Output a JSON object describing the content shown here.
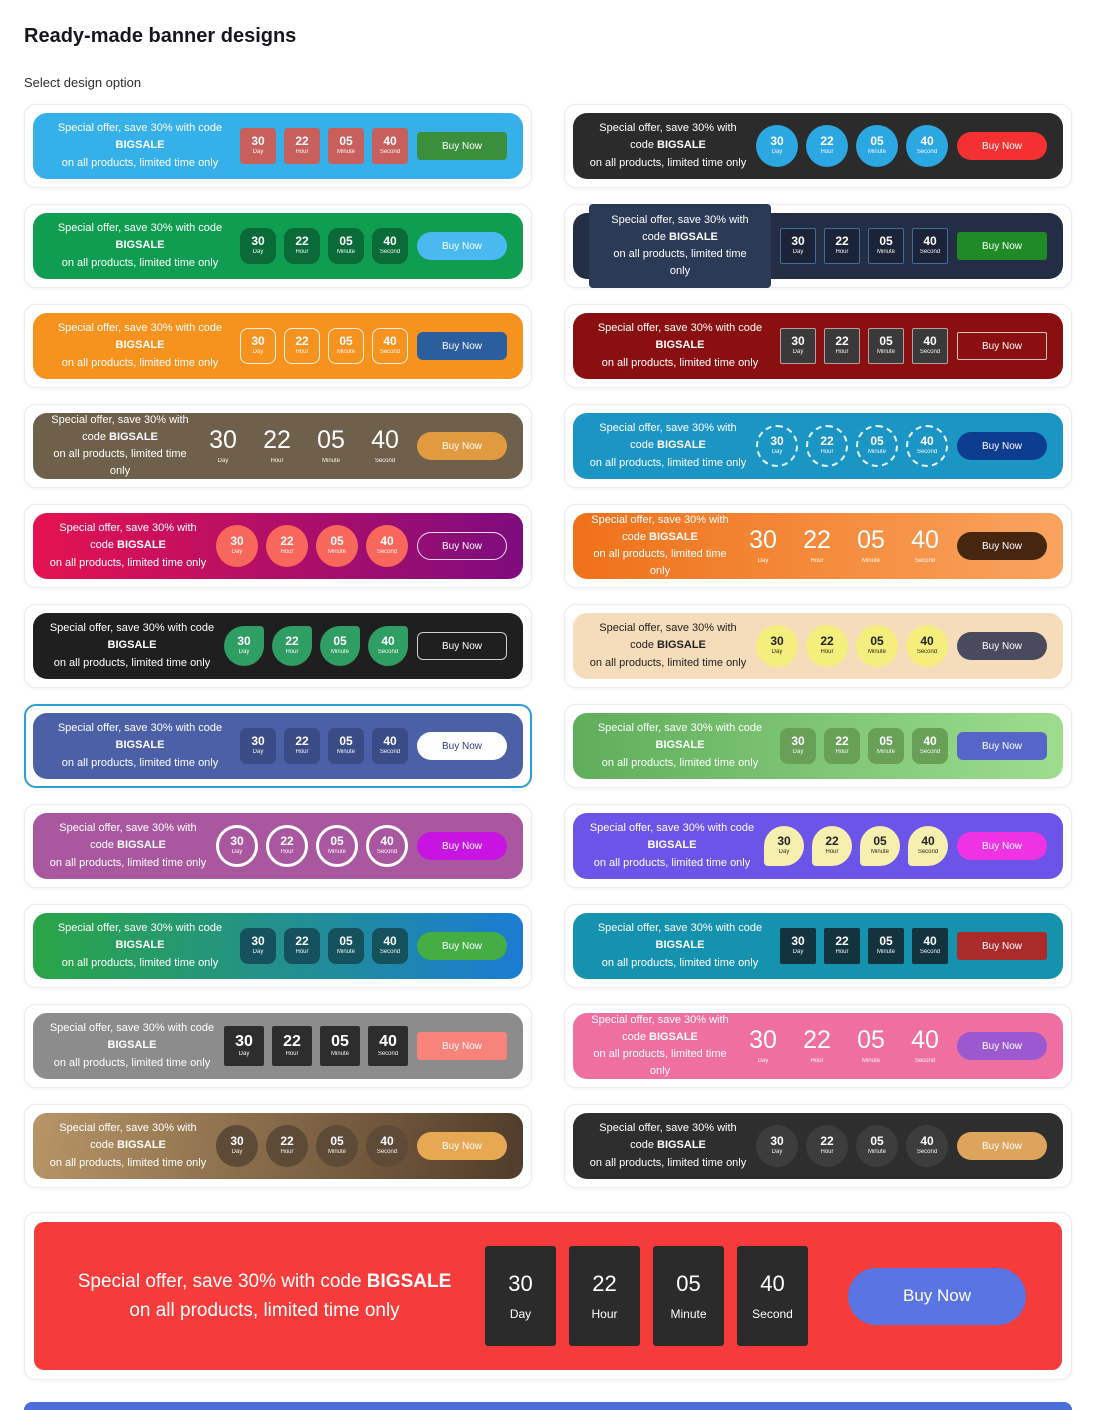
{
  "header": {
    "title": "Ready-made banner designs",
    "subtitle": "Select design option"
  },
  "banner_text": {
    "line1_prefix": "Special offer, save 30% with code ",
    "code": "BIGSALE",
    "line2": "on all products, limited time only"
  },
  "countdown": {
    "units": [
      {
        "value": "30",
        "label": "Day"
      },
      {
        "value": "22",
        "label": "Hour"
      },
      {
        "value": "05",
        "label": "Minute"
      },
      {
        "value": "40",
        "label": "Second"
      }
    ]
  },
  "buy_button_label": "Buy Now",
  "selected_border_color": "#2b9fd8",
  "designs": [
    {
      "name": "sky-blue-red-boxes",
      "selected": false,
      "bg": "#35b0e8",
      "text_color": "#ffffff",
      "timer": {
        "shape": "box",
        "bg": "#c75f5d",
        "color": "#ffffff",
        "radius": "4px"
      },
      "button": {
        "bg": "#3a8f3d",
        "color": "#ffffff",
        "radius": "4px"
      }
    },
    {
      "name": "charcoal-blue-circles",
      "selected": false,
      "bg": "#2b2b2b",
      "text_color": "#ffffff",
      "timer": {
        "shape": "circle",
        "bg": "#2ba7e2",
        "color": "#ffffff"
      },
      "button": {
        "bg": "#f43030",
        "color": "#ffffff",
        "radius": "999px"
      }
    },
    {
      "name": "green-dark-boxes",
      "selected": false,
      "bg": "#0f9d51",
      "text_color": "#ffffff",
      "timer": {
        "shape": "box",
        "bg": "#0a6b39",
        "color": "#ffffff",
        "radius": "10px"
      },
      "button": {
        "bg": "#49b9ef",
        "color": "#ffffff",
        "radius": "999px"
      }
    },
    {
      "name": "navy-outline-boxes",
      "selected": false,
      "bg": "#232e45",
      "text_color": "#ffffff",
      "text_panel": "#2b3a55",
      "timer": {
        "shape": "box",
        "bg": "#1a2436",
        "color": "#ffffff",
        "border": "1px solid #3f6d9e",
        "radius": "2px"
      },
      "button": {
        "bg": "#1f8b24",
        "color": "#ffffff",
        "radius": "3px"
      }
    },
    {
      "name": "orange-outline-boxes",
      "selected": false,
      "bg": "#f6921e",
      "text_color": "#ffffff",
      "timer": {
        "shape": "box",
        "bg": "transparent",
        "color": "#ffffff",
        "border": "1px solid rgba(255,255,255,0.85)",
        "radius": "8px"
      },
      "button": {
        "bg": "#2a5e9c",
        "color": "#ffffff",
        "radius": "6px"
      }
    },
    {
      "name": "maroon-gray-boxes",
      "selected": false,
      "bg": "#8a0f11",
      "text_color": "#ffffff",
      "timer": {
        "shape": "box",
        "bg": "#3a3a3a",
        "color": "#ffffff",
        "border": "1px solid #b99f9f",
        "radius": "2px"
      },
      "button": {
        "bg": "transparent",
        "color": "#ffffff",
        "border": "1px solid #d9c1c1",
        "radius": "2px"
      }
    },
    {
      "name": "taupe-plain-numbers",
      "selected": false,
      "bg": "#6e604a",
      "text_color": "#ffffff",
      "timer": {
        "shape": "plain",
        "color": "#ffffff"
      },
      "button": {
        "bg": "#e29a41",
        "color": "#ffffff",
        "radius": "999px"
      }
    },
    {
      "name": "teal-dashed-circles",
      "selected": false,
      "bg": "#1b95c4",
      "text_color": "#ffffff",
      "timer": {
        "shape": "circle",
        "bg": "transparent",
        "color": "#ffffff",
        "border": "2px dashed rgba(255,255,255,0.9)"
      },
      "button": {
        "bg": "#0d3d90",
        "color": "#ffffff",
        "radius": "999px"
      }
    },
    {
      "name": "crimson-purple-gradient",
      "selected": false,
      "bg": "linear-gradient(90deg,#e51250,#7d0c7e)",
      "text_color": "#ffffff",
      "timer": {
        "shape": "circle",
        "bg": "#f8675c",
        "color": "#ffffff"
      },
      "button": {
        "bg": "transparent",
        "color": "#ffffff",
        "border": "1px solid rgba(255,255,255,0.85)",
        "radius": "999px"
      }
    },
    {
      "name": "orange-gradient-plain",
      "selected": false,
      "bg": "linear-gradient(90deg,#ef7119,#f9a45f)",
      "text_color": "#ffffff",
      "timer": {
        "shape": "plain",
        "color": "#ffffff"
      },
      "button": {
        "bg": "#47260f",
        "color": "#ffffff",
        "radius": "999px"
      }
    },
    {
      "name": "black-green-leaf",
      "selected": false,
      "bg": "#1f1f1f",
      "text_color": "#ffffff",
      "timer": {
        "shape": "leaf-tr",
        "bg": "#2f9e63",
        "color": "#ffffff"
      },
      "button": {
        "bg": "transparent",
        "color": "#ffffff",
        "border": "1px solid #cfcfcf",
        "radius": "6px"
      }
    },
    {
      "name": "cream-yellow-circles",
      "selected": false,
      "bg": "#f5dcba",
      "text_color": "#222222",
      "timer": {
        "shape": "circle",
        "bg": "#f4ee7c",
        "color": "#222222"
      },
      "button": {
        "bg": "#494a5e",
        "color": "#ffffff",
        "radius": "999px"
      }
    },
    {
      "name": "indigo-white-button",
      "selected": true,
      "bg": "#4c60a8",
      "text_color": "#ffffff",
      "timer": {
        "shape": "box",
        "bg": "#3b4b86",
        "color": "#ffffff",
        "radius": "6px"
      },
      "button": {
        "bg": "#ffffff",
        "color": "#2c3c7c",
        "radius": "999px"
      }
    },
    {
      "name": "green-gradient-boxes",
      "selected": false,
      "bg": "linear-gradient(90deg,#5fae5c,#9ddd8e)",
      "text_color": "#ffffff",
      "timer": {
        "shape": "box",
        "bg": "#68a058",
        "color": "#ffffff",
        "radius": "8px"
      },
      "button": {
        "bg": "#5566c8",
        "color": "#ffffff",
        "radius": "6px"
      }
    },
    {
      "name": "mauve-outline-circles",
      "selected": false,
      "bg": "#a9589f",
      "text_color": "#ffffff",
      "timer": {
        "shape": "circle",
        "bg": "transparent",
        "color": "#ffffff",
        "border": "3px solid #ffffff"
      },
      "button": {
        "bg": "#c714e1",
        "color": "#ffffff",
        "radius": "999px"
      }
    },
    {
      "name": "violet-cream-leaf",
      "selected": false,
      "bg": "#6b54e7",
      "text_color": "#ffffff",
      "timer": {
        "shape": "leaf-bl",
        "bg": "#f7efad",
        "color": "#222222"
      },
      "button": {
        "bg": "#ee32e4",
        "color": "#ffffff",
        "radius": "999px"
      }
    },
    {
      "name": "green-blue-gradient",
      "selected": false,
      "bg": "linear-gradient(90deg,#2ba546,#1b7cd3)",
      "text_color": "#ffffff",
      "timer": {
        "shape": "box",
        "bg": "#15525e",
        "color": "#ffffff",
        "radius": "8px"
      },
      "button": {
        "bg": "#44ad44",
        "color": "#ffffff",
        "radius": "999px"
      }
    },
    {
      "name": "teal-navy-boxes-red-button",
      "selected": false,
      "bg": "#1592ad",
      "text_color": "#ffffff",
      "timer": {
        "shape": "box",
        "bg": "#13333f",
        "color": "#ffffff",
        "radius": "2px"
      },
      "button": {
        "bg": "#ab2b2b",
        "color": "#ffffff",
        "radius": "3px"
      }
    },
    {
      "name": "gray-dark-boxes",
      "selected": false,
      "bg": "#8c8c8c",
      "text_color": "#ffffff",
      "timer": {
        "shape": "box",
        "bg": "#2d2d2d",
        "color": "#ffffff",
        "radius": "2px",
        "big_num": true
      },
      "button": {
        "bg": "#f8837b",
        "color": "#ffffff",
        "radius": "3px"
      }
    },
    {
      "name": "pink-plain-numbers",
      "selected": false,
      "bg": "#ee6fa0",
      "text_color": "#ffffff",
      "timer": {
        "shape": "plain",
        "color": "#ffffff"
      },
      "button": {
        "bg": "#9c59cf",
        "color": "#ffffff",
        "radius": "999px"
      }
    },
    {
      "name": "tan-brown-gradient",
      "selected": false,
      "bg": "linear-gradient(100deg,#b79566,#503c2a)",
      "text_color": "#ffffff",
      "timer": {
        "shape": "circle",
        "bg": "#5d4a37",
        "color": "#ffffff"
      },
      "button": {
        "bg": "#e6a852",
        "color": "#ffffff",
        "radius": "999px"
      }
    },
    {
      "name": "charcoal-gray-circles",
      "selected": false,
      "bg": "#2e2e2e",
      "text_color": "#ffffff",
      "timer": {
        "shape": "circle",
        "bg": "#3d3d3d",
        "color": "#ffffff"
      },
      "button": {
        "bg": "#dda45c",
        "color": "#ffffff",
        "radius": "999px"
      }
    }
  ],
  "preview": {
    "name": "red-large-preview",
    "bg": "#f63b3b",
    "text_color": "#ffffff",
    "timer": {
      "bg": "#2b2b2b",
      "color": "#ffffff"
    },
    "button": {
      "bg": "#5a74e4",
      "color": "#ffffff"
    }
  },
  "bottom_bar_color": "#4a6edb"
}
